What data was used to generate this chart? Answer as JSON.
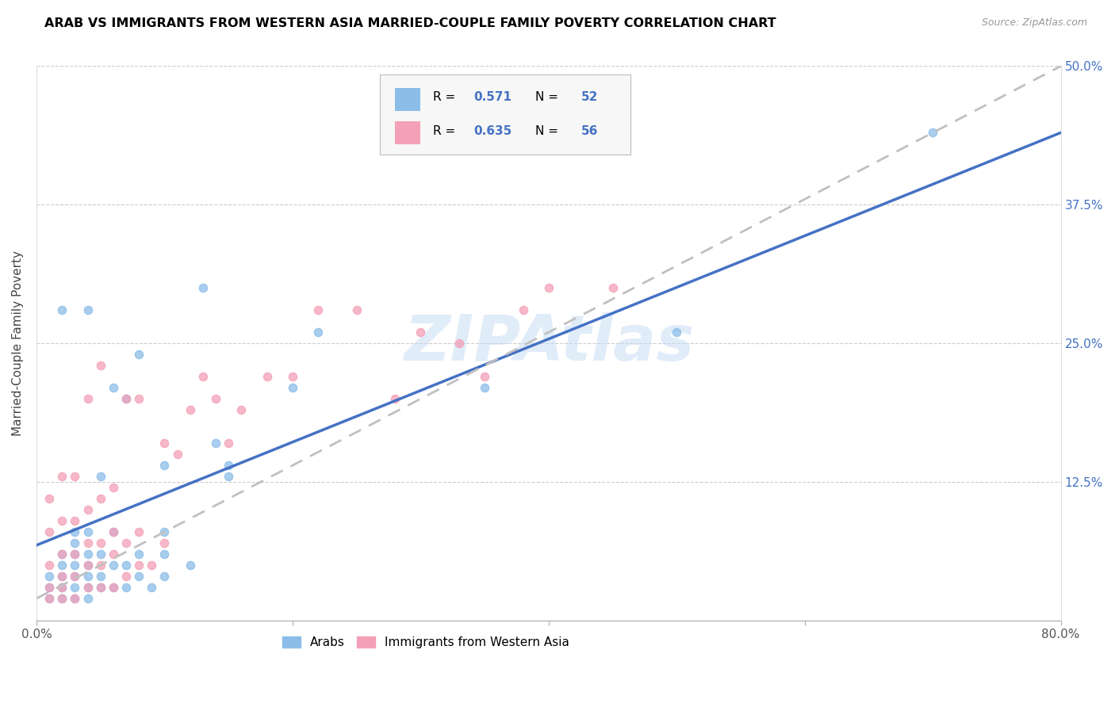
{
  "title": "ARAB VS IMMIGRANTS FROM WESTERN ASIA MARRIED-COUPLE FAMILY POVERTY CORRELATION CHART",
  "source": "Source: ZipAtlas.com",
  "ylabel": "Married-Couple Family Poverty",
  "xlim": [
    0.0,
    0.8
  ],
  "ylim": [
    0.0,
    0.5
  ],
  "xticks": [
    0.0,
    0.2,
    0.4,
    0.6,
    0.8
  ],
  "yticks": [
    0.0,
    0.125,
    0.25,
    0.375,
    0.5
  ],
  "right_ytick_labels": [
    "",
    "12.5%",
    "25.0%",
    "37.5%",
    "50.0%"
  ],
  "left_ytick_labels": [
    "",
    "",
    "",
    "",
    ""
  ],
  "xtick_labels": [
    "0.0%",
    "",
    "",
    "",
    "80.0%"
  ],
  "watermark": "ZIPAtlas",
  "legend_label1": "Arabs",
  "legend_label2": "Immigrants from Western Asia",
  "R1": 0.571,
  "N1": 52,
  "R2": 0.635,
  "N2": 56,
  "color_arab": "#8bbde8",
  "color_immig": "#f4a0b8",
  "color_line_arab": "#4472c4",
  "color_line_immig": "#c0c0c0",
  "arab_line_intercept": 0.068,
  "arab_line_slope": 0.465,
  "immig_line_intercept": 0.02,
  "immig_line_slope": 0.6,
  "arab_x": [
    0.01,
    0.01,
    0.01,
    0.02,
    0.02,
    0.02,
    0.02,
    0.02,
    0.02,
    0.03,
    0.03,
    0.03,
    0.03,
    0.03,
    0.03,
    0.03,
    0.04,
    0.04,
    0.04,
    0.04,
    0.04,
    0.04,
    0.04,
    0.05,
    0.05,
    0.05,
    0.05,
    0.06,
    0.06,
    0.06,
    0.06,
    0.07,
    0.07,
    0.07,
    0.08,
    0.08,
    0.08,
    0.09,
    0.1,
    0.1,
    0.1,
    0.1,
    0.12,
    0.13,
    0.14,
    0.15,
    0.15,
    0.2,
    0.22,
    0.35,
    0.5,
    0.7
  ],
  "arab_y": [
    0.02,
    0.03,
    0.04,
    0.02,
    0.03,
    0.04,
    0.05,
    0.06,
    0.28,
    0.02,
    0.03,
    0.04,
    0.05,
    0.06,
    0.07,
    0.08,
    0.02,
    0.03,
    0.04,
    0.05,
    0.06,
    0.08,
    0.28,
    0.03,
    0.04,
    0.06,
    0.13,
    0.03,
    0.05,
    0.08,
    0.21,
    0.03,
    0.05,
    0.2,
    0.04,
    0.06,
    0.24,
    0.03,
    0.04,
    0.06,
    0.08,
    0.14,
    0.05,
    0.3,
    0.16,
    0.13,
    0.14,
    0.21,
    0.26,
    0.21,
    0.26,
    0.44
  ],
  "immig_x": [
    0.01,
    0.01,
    0.01,
    0.01,
    0.01,
    0.02,
    0.02,
    0.02,
    0.02,
    0.02,
    0.02,
    0.03,
    0.03,
    0.03,
    0.03,
    0.03,
    0.04,
    0.04,
    0.04,
    0.04,
    0.04,
    0.05,
    0.05,
    0.05,
    0.05,
    0.05,
    0.06,
    0.06,
    0.06,
    0.06,
    0.07,
    0.07,
    0.07,
    0.08,
    0.08,
    0.08,
    0.09,
    0.1,
    0.1,
    0.11,
    0.12,
    0.13,
    0.14,
    0.15,
    0.16,
    0.18,
    0.2,
    0.22,
    0.25,
    0.28,
    0.3,
    0.33,
    0.35,
    0.38,
    0.4,
    0.45
  ],
  "immig_y": [
    0.02,
    0.03,
    0.05,
    0.08,
    0.11,
    0.02,
    0.03,
    0.04,
    0.06,
    0.09,
    0.13,
    0.02,
    0.04,
    0.06,
    0.09,
    0.13,
    0.03,
    0.05,
    0.07,
    0.1,
    0.2,
    0.03,
    0.05,
    0.07,
    0.11,
    0.23,
    0.03,
    0.06,
    0.08,
    0.12,
    0.04,
    0.07,
    0.2,
    0.05,
    0.08,
    0.2,
    0.05,
    0.07,
    0.16,
    0.15,
    0.19,
    0.22,
    0.2,
    0.16,
    0.19,
    0.22,
    0.22,
    0.28,
    0.28,
    0.2,
    0.26,
    0.25,
    0.22,
    0.28,
    0.3,
    0.3
  ]
}
